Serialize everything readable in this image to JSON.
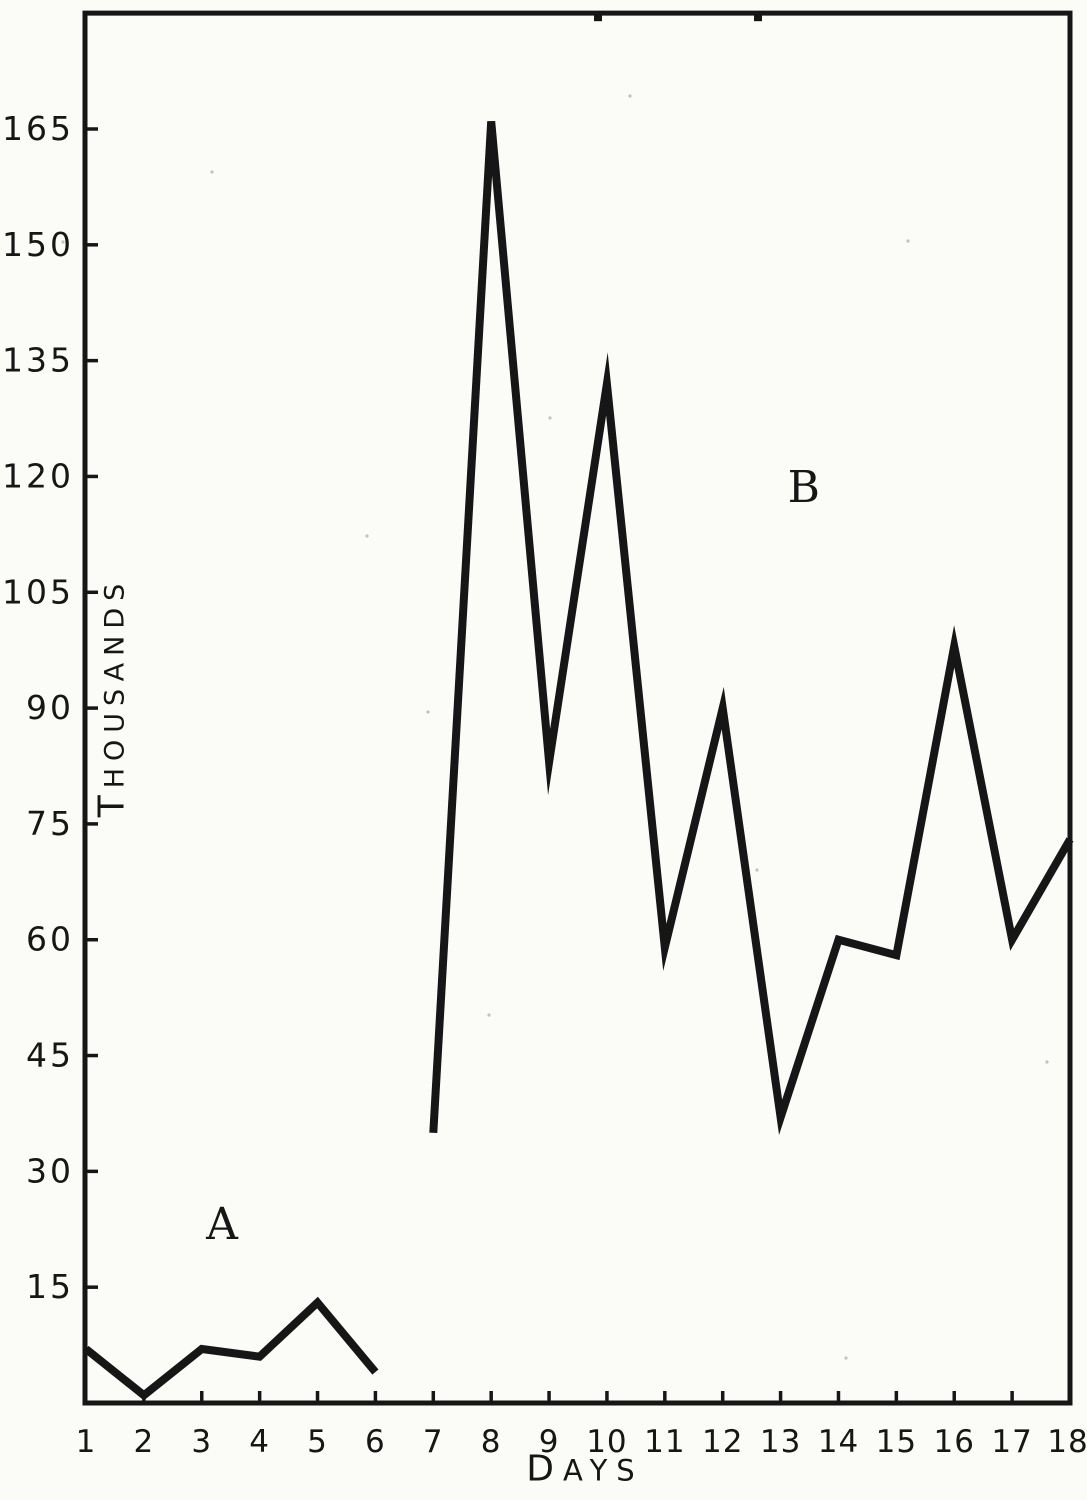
{
  "figure": {
    "paper_color": "#fbfbf8",
    "ink_color": "#161616"
  },
  "labels": {
    "y_axis": "THOUSANDS",
    "x_axis": "DAYS",
    "series_a": "A",
    "series_b": "B"
  },
  "chart_data": {
    "type": "line",
    "title": "",
    "xlabel": "DAYS",
    "ylabel": "THOUSANDS",
    "grid": false,
    "legend": "inline letter labels A and B",
    "xlim": [
      1,
      18
    ],
    "ylim": [
      0,
      180
    ],
    "x_ticks": [
      1,
      2,
      3,
      4,
      5,
      6,
      7,
      8,
      9,
      10,
      11,
      12,
      13,
      14,
      15,
      16,
      17,
      18
    ],
    "y_ticks": [
      15,
      30,
      45,
      60,
      75,
      90,
      105,
      120,
      135,
      150,
      165
    ],
    "series": [
      {
        "name": "A",
        "x": [
          1,
          2,
          3,
          4,
          5,
          6
        ],
        "values": [
          7,
          1,
          7,
          6,
          13,
          4
        ],
        "label_pos": {
          "x": 3.35,
          "y": 23
        }
      },
      {
        "name": "B",
        "x": [
          7,
          8,
          9,
          10,
          11,
          12,
          13,
          14,
          15,
          16,
          17,
          18
        ],
        "values": [
          35,
          166,
          83,
          132,
          59,
          90,
          37,
          60,
          58,
          98,
          60,
          73
        ],
        "label_pos": {
          "x": 13.4,
          "y": 118.5
        }
      }
    ]
  }
}
